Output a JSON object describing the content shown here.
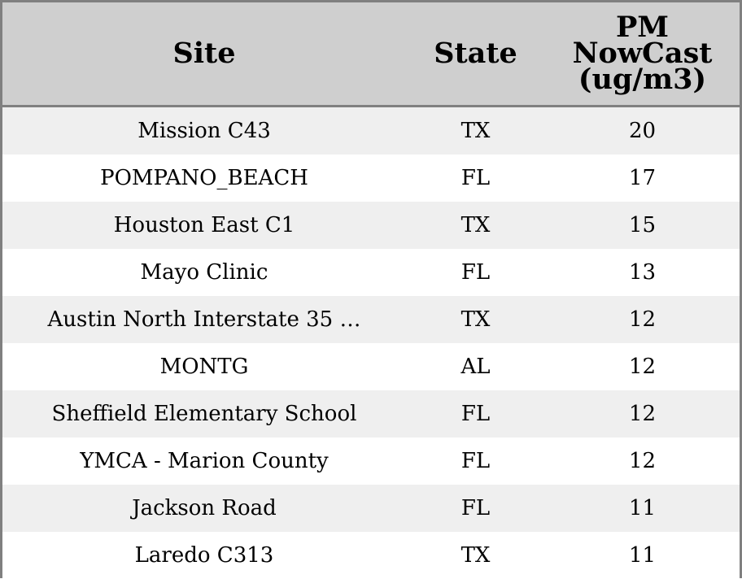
{
  "chart_data": {
    "type": "table",
    "columns": [
      "Site",
      "State",
      "PM NowCast (ug/m3)"
    ],
    "header_lines": {
      "site": [
        "Site"
      ],
      "state": [
        "State"
      ],
      "value": [
        "PM",
        "NowCast",
        "(ug/m3)"
      ]
    },
    "rows": [
      {
        "site": "Mission C43",
        "state": "TX",
        "value": "20"
      },
      {
        "site": "POMPANO_BEACH",
        "state": "FL",
        "value": "17"
      },
      {
        "site": "Houston East C1",
        "state": "TX",
        "value": "15"
      },
      {
        "site": "Mayo Clinic",
        "state": "FL",
        "value": "13"
      },
      {
        "site": "Austin North Interstate 35 …",
        "state": "TX",
        "value": "12"
      },
      {
        "site": "MONTG",
        "state": "AL",
        "value": "12"
      },
      {
        "site": "Sheffield Elementary School",
        "state": "FL",
        "value": "12"
      },
      {
        "site": "YMCA - Marion County",
        "state": "FL",
        "value": "12"
      },
      {
        "site": "Jackson Road",
        "state": "FL",
        "value": "11"
      },
      {
        "site": "Laredo C313",
        "state": "TX",
        "value": "11"
      }
    ],
    "colors": {
      "header_background": "#cfcfcf",
      "stripe_background": "#efefef",
      "row_background": "#ffffff",
      "border": "#808080"
    }
  }
}
